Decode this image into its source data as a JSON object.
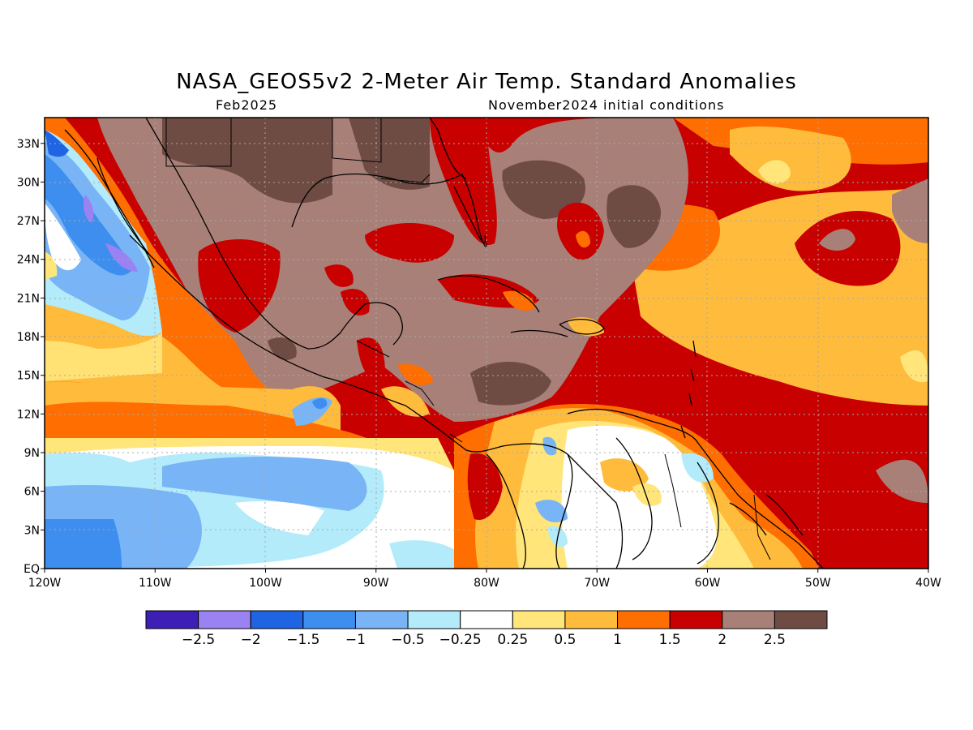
{
  "title": "NASA_GEOS5v2 2-Meter Air Temp. Standard Anomalies",
  "subtitle_left": "Feb2025",
  "subtitle_right": "November2024 initial conditions",
  "map": {
    "lon_range": [
      -120,
      -40
    ],
    "lat_range": [
      0,
      35
    ],
    "lat_ticks": [
      {
        "value": 33,
        "label": "33N"
      },
      {
        "value": 30,
        "label": "30N"
      },
      {
        "value": 27,
        "label": "27N"
      },
      {
        "value": 24,
        "label": "24N"
      },
      {
        "value": 21,
        "label": "21N"
      },
      {
        "value": 18,
        "label": "18N"
      },
      {
        "value": 15,
        "label": "15N"
      },
      {
        "value": 12,
        "label": "12N"
      },
      {
        "value": 9,
        "label": "9N"
      },
      {
        "value": 6,
        "label": "6N"
      },
      {
        "value": 3,
        "label": "3N"
      },
      {
        "value": 0,
        "label": "EQ"
      }
    ],
    "lon_ticks": [
      {
        "value": -120,
        "label": "120W"
      },
      {
        "value": -110,
        "label": "110W"
      },
      {
        "value": -100,
        "label": "100W"
      },
      {
        "value": -90,
        "label": "90W"
      },
      {
        "value": -80,
        "label": "80W"
      },
      {
        "value": -70,
        "label": "70W"
      },
      {
        "value": -60,
        "label": "60W"
      },
      {
        "value": -50,
        "label": "50W"
      },
      {
        "value": -40,
        "label": "40W"
      }
    ],
    "grid": "dotted"
  },
  "colorbar": {
    "colors": [
      "#3d1fb5",
      "#9b82f2",
      "#1f64e3",
      "#3e8ef0",
      "#78b4f6",
      "#b3ebfb",
      "#ffffff",
      "#ffe57a",
      "#ffbb3c",
      "#ff6e00",
      "#c80000",
      "#a88078",
      "#6e4b43"
    ],
    "labels": [
      "-2.5",
      "-2",
      "-1.5",
      "-1",
      "-0.5",
      "-0.25",
      "0.25",
      "0.5",
      "1",
      "1.5",
      "2",
      "2.5"
    ]
  }
}
